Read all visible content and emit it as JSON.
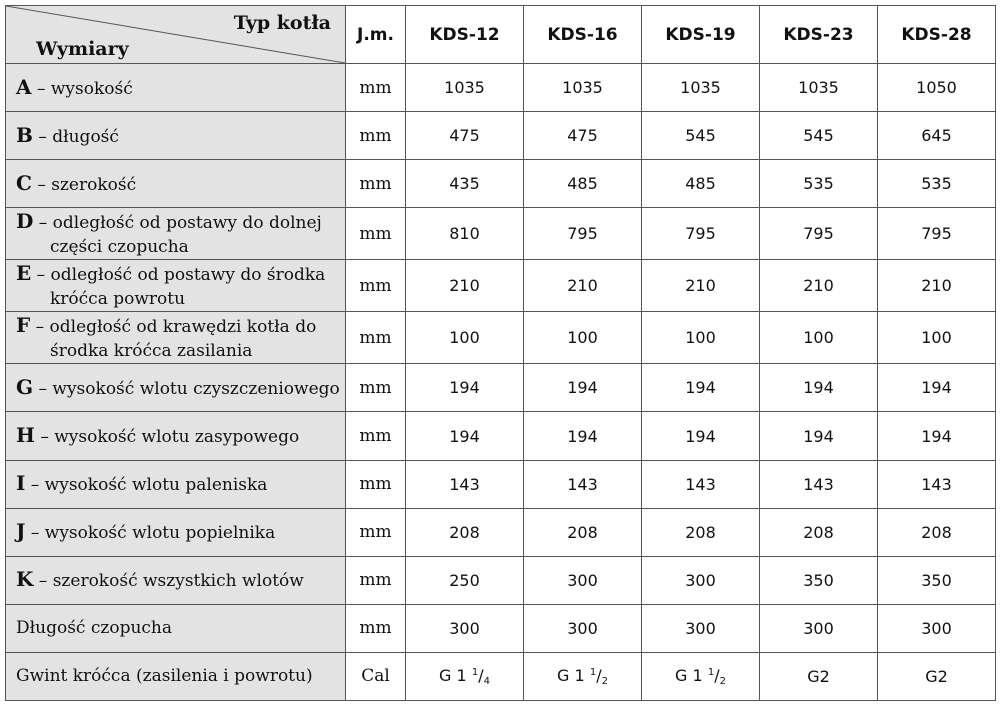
{
  "header": {
    "corner_top": "Typ kotła",
    "corner_bottom": "Wymiary",
    "unit_label": "J.m.",
    "models": [
      "KDS-12",
      "KDS-16",
      "KDS-19",
      "KDS-23",
      "KDS-28"
    ]
  },
  "rows": [
    {
      "letter": "A",
      "line1": "– wysokość",
      "line2": "",
      "unit": "mm",
      "values": [
        "1035",
        "1035",
        "1035",
        "1035",
        "1050"
      ]
    },
    {
      "letter": "B",
      "line1": "– długość",
      "line2": "",
      "unit": "mm",
      "values": [
        "475",
        "475",
        "545",
        "545",
        "645"
      ]
    },
    {
      "letter": "C",
      "line1": "– szerokość",
      "line2": "",
      "unit": "mm",
      "values": [
        "435",
        "485",
        "485",
        "535",
        "535"
      ]
    },
    {
      "letter": "D",
      "line1": "– odległość od postawy do dolnej",
      "line2": "części czopucha",
      "unit": "mm",
      "values": [
        "810",
        "795",
        "795",
        "795",
        "795"
      ]
    },
    {
      "letter": "E",
      "line1": "– odległość od postawy do środka",
      "line2": "króćca powrotu",
      "unit": "mm",
      "values": [
        "210",
        "210",
        "210",
        "210",
        "210"
      ]
    },
    {
      "letter": "F",
      "line1": "– odległość od krawędzi kotła do",
      "line2": "środka króćca zasilania",
      "unit": "mm",
      "values": [
        "100",
        "100",
        "100",
        "100",
        "100"
      ]
    },
    {
      "letter": "G",
      "line1": "– wysokość wlotu czyszczeniowego",
      "line2": "",
      "unit": "mm",
      "values": [
        "194",
        "194",
        "194",
        "194",
        "194"
      ]
    },
    {
      "letter": "H",
      "line1": "– wysokość wlotu zasypowego",
      "line2": "",
      "unit": "mm",
      "values": [
        "194",
        "194",
        "194",
        "194",
        "194"
      ]
    },
    {
      "letter": "I",
      "line1": "– wysokość wlotu paleniska",
      "line2": "",
      "unit": "mm",
      "values": [
        "143",
        "143",
        "143",
        "143",
        "143"
      ]
    },
    {
      "letter": "J",
      "line1": "– wysokość wlotu popielnika",
      "line2": "",
      "unit": "mm",
      "values": [
        "208",
        "208",
        "208",
        "208",
        "208"
      ]
    },
    {
      "letter": "K",
      "line1": "– szerokość wszystkich wlotów",
      "line2": "",
      "unit": "mm",
      "values": [
        "250",
        "300",
        "300",
        "350",
        "350"
      ]
    },
    {
      "letter": "",
      "line1": "Długość czopucha",
      "line2": "",
      "unit": "mm",
      "values": [
        "300",
        "300",
        "300",
        "300",
        "300"
      ]
    }
  ],
  "thread_row": {
    "label": "Gwint króćca (zasilenia i powrotu)",
    "unit": "Cal",
    "values": [
      {
        "base": "G 1",
        "num": "1",
        "den": "4",
        "plain": ""
      },
      {
        "base": "G 1",
        "num": "1",
        "den": "2",
        "plain": ""
      },
      {
        "base": "G 1",
        "num": "1",
        "den": "2",
        "plain": ""
      },
      {
        "base": "",
        "num": "",
        "den": "",
        "plain": "G2"
      },
      {
        "base": "",
        "num": "",
        "den": "",
        "plain": "G2"
      }
    ]
  }
}
